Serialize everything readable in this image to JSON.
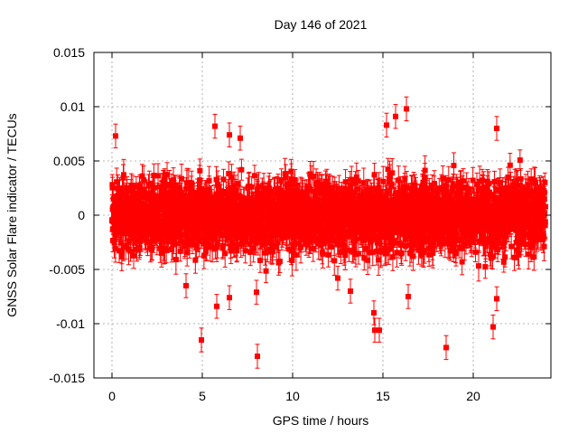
{
  "chart_data": {
    "type": "scatter",
    "title": "Day 146 of 2021",
    "xlabel": "GPS time / hours",
    "ylabel": "GNSS Solar Flare indicator / TECUs",
    "xlim": [
      -1,
      24.3
    ],
    "ylim": [
      -0.015,
      0.015
    ],
    "xticks": [
      0,
      5,
      10,
      15,
      20
    ],
    "xtick_labels": [
      "0",
      "5",
      "10",
      "15",
      "20"
    ],
    "yticks": [
      -0.015,
      -0.01,
      -0.005,
      0,
      0.005,
      0.01,
      0.015
    ],
    "ytick_labels": [
      "-0.015",
      "-0.01",
      "-0.005",
      "0",
      "0.005",
      "0.01",
      "0.015"
    ],
    "grid": true,
    "series": [
      {
        "color": "#ff0000",
        "marker": "square",
        "error_bars": true,
        "typical_error": 0.0011,
        "x_range": [
          0,
          24
        ],
        "points_per_hour": 120,
        "central_spread": 0.0023,
        "outliers": [
          {
            "x": 0.2,
            "y": 0.0073
          },
          {
            "x": 4.1,
            "y": -0.0065
          },
          {
            "x": 4.95,
            "y": -0.0115
          },
          {
            "x": 5.7,
            "y": 0.0082
          },
          {
            "x": 5.8,
            "y": -0.0084
          },
          {
            "x": 6.5,
            "y": 0.0074
          },
          {
            "x": 6.5,
            "y": -0.0076
          },
          {
            "x": 7.1,
            "y": 0.0071
          },
          {
            "x": 8.0,
            "y": -0.0071
          },
          {
            "x": 8.05,
            "y": -0.013
          },
          {
            "x": 12.5,
            "y": -0.0058
          },
          {
            "x": 13.2,
            "y": -0.007
          },
          {
            "x": 14.5,
            "y": -0.009
          },
          {
            "x": 14.55,
            "y": -0.0106
          },
          {
            "x": 14.8,
            "y": -0.0106
          },
          {
            "x": 15.2,
            "y": 0.0083
          },
          {
            "x": 15.7,
            "y": 0.0091
          },
          {
            "x": 16.3,
            "y": 0.0098
          },
          {
            "x": 16.4,
            "y": -0.0075
          },
          {
            "x": 18.5,
            "y": -0.0122
          },
          {
            "x": 21.1,
            "y": -0.0103
          },
          {
            "x": 21.3,
            "y": 0.008
          },
          {
            "x": 21.3,
            "y": -0.0077
          }
        ]
      }
    ]
  }
}
